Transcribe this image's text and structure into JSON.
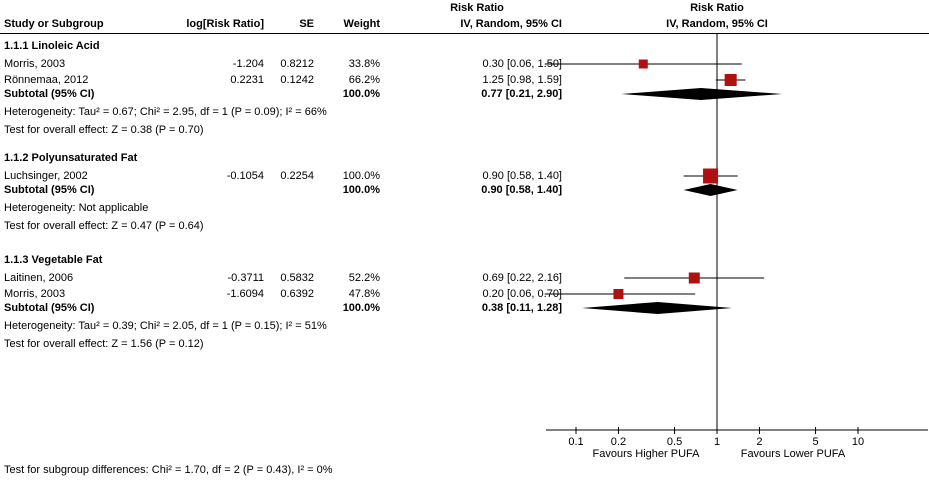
{
  "chart_data": {
    "type": "forest",
    "effect_measure": "Risk Ratio",
    "method": "IV, Random, 95% CI",
    "columns": {
      "study": "Study or Subgroup",
      "log_rr": "log[Risk Ratio]",
      "se": "SE",
      "weight": "Weight",
      "ci": "IV, Random, 95% CI"
    },
    "plot_header": {
      "title": "Risk Ratio",
      "subtitle": "IV, Random, 95% CI"
    },
    "subgroups": [
      {
        "title": "1.1.1 Linoleic Acid",
        "studies": [
          {
            "name": "Morris, 2003",
            "log_rr": "-1.204",
            "se": "0.8212",
            "weight": "33.8%",
            "weight_pct": 33.8,
            "ci_text": "0.30 [0.06, 1.50]",
            "rr": 0.3,
            "ci_low": 0.06,
            "ci_high": 1.5
          },
          {
            "name": "Rönnemaa, 2012",
            "log_rr": "0.2231",
            "se": "0.1242",
            "weight": "66.2%",
            "weight_pct": 66.2,
            "ci_text": "1.25 [0.98, 1.59]",
            "rr": 1.25,
            "ci_low": 0.98,
            "ci_high": 1.59
          }
        ],
        "subtotal": {
          "label": "Subtotal (95% CI)",
          "weight": "100.0%",
          "ci_text": "0.77 [0.21, 2.90]",
          "rr": 0.77,
          "ci_low": 0.21,
          "ci_high": 2.9
        },
        "heterogeneity": "Heterogeneity: Tau² = 0.67; Chi² = 2.95, df = 1 (P = 0.09); I² = 66%",
        "overall_effect": "Test for overall effect: Z = 0.38 (P = 0.70)"
      },
      {
        "title": "1.1.2 Polyunsaturated Fat",
        "studies": [
          {
            "name": "Luchsinger, 2002",
            "log_rr": "-0.1054",
            "se": "0.2254",
            "weight": "100.0%",
            "weight_pct": 100.0,
            "ci_text": "0.90 [0.58, 1.40]",
            "rr": 0.9,
            "ci_low": 0.58,
            "ci_high": 1.4
          }
        ],
        "subtotal": {
          "label": "Subtotal (95% CI)",
          "weight": "100.0%",
          "ci_text": "0.90 [0.58, 1.40]",
          "rr": 0.9,
          "ci_low": 0.58,
          "ci_high": 1.4
        },
        "heterogeneity": "Heterogeneity: Not applicable",
        "overall_effect": "Test for overall effect: Z = 0.47 (P = 0.64)"
      },
      {
        "title": "1.1.3 Vegetable Fat",
        "studies": [
          {
            "name": "Laitinen, 2006",
            "log_rr": "-0.3711",
            "se": "0.5832",
            "weight": "52.2%",
            "weight_pct": 52.2,
            "ci_text": "0.69 [0.22, 2.16]",
            "rr": 0.69,
            "ci_low": 0.22,
            "ci_high": 2.16
          },
          {
            "name": "Morris, 2003",
            "log_rr": "-1.6094",
            "se": "0.6392",
            "weight": "47.8%",
            "weight_pct": 47.8,
            "ci_text": "0.20 [0.06, 0.70]",
            "rr": 0.2,
            "ci_low": 0.06,
            "ci_high": 0.7
          }
        ],
        "subtotal": {
          "label": "Subtotal (95% CI)",
          "weight": "100.0%",
          "ci_text": "0.38 [0.11, 1.28]",
          "rr": 0.38,
          "ci_low": 0.11,
          "ci_high": 1.28
        },
        "heterogeneity": "Heterogeneity: Tau² = 0.39; Chi² = 2.05, df = 1 (P = 0.15); I² = 51%",
        "overall_effect": "Test for overall effect: Z = 1.56 (P = 0.12)"
      }
    ],
    "axis": {
      "scale": "log",
      "ticks": [
        0.1,
        0.2,
        0.5,
        1,
        2,
        5,
        10
      ],
      "tick_labels": [
        "0.1",
        "0.2",
        "0.5",
        "1",
        "2",
        "5",
        "10"
      ],
      "favours_left": "Favours Higher PUFA",
      "favours_right": "Favours Lower PUFA"
    },
    "footer": "Test for subgroup differences: Chi² = 1.70, df = 2 (P = 0.43), I² = 0%",
    "colors": {
      "study_square": "#b01010",
      "ci_line": "#000000",
      "diamond": "#000000",
      "axis": "#000000"
    }
  }
}
